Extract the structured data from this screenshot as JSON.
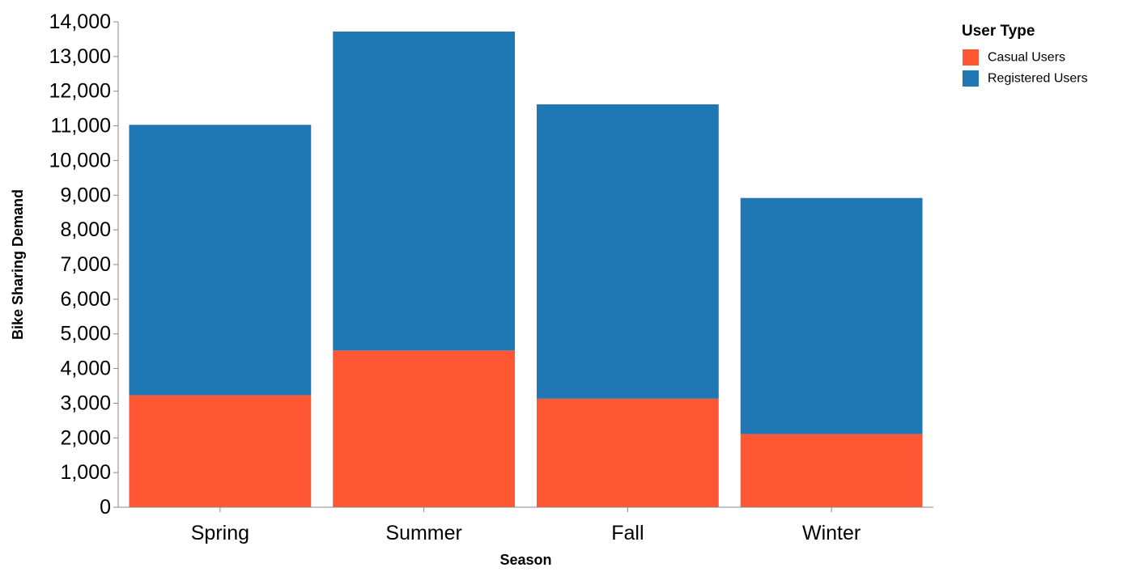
{
  "chart_data": {
    "type": "bar",
    "stacked": true,
    "categories": [
      "Spring",
      "Summer",
      "Fall",
      "Winter"
    ],
    "series": [
      {
        "name": "Casual Users",
        "color": "#ff5733",
        "values": [
          3230,
          4520,
          3130,
          2110
        ]
      },
      {
        "name": "Registered Users",
        "color": "#1f77b4",
        "values": [
          7800,
          9200,
          8490,
          6810
        ]
      }
    ],
    "xlabel": "Season",
    "ylabel": "Bike Sharing Demand",
    "ylim": [
      0,
      14000
    ],
    "yticks": [
      0,
      1000,
      2000,
      3000,
      4000,
      5000,
      6000,
      7000,
      8000,
      9000,
      10000,
      11000,
      12000,
      13000,
      14000
    ],
    "ytick_labels": [
      "0",
      "1,000",
      "2,000",
      "3,000",
      "4,000",
      "5,000",
      "6,000",
      "7,000",
      "8,000",
      "9,000",
      "10,000",
      "11,000",
      "12,000",
      "13,000",
      "14,000"
    ],
    "grid": false,
    "legend": {
      "title": "User Type",
      "position": "top-right"
    }
  }
}
